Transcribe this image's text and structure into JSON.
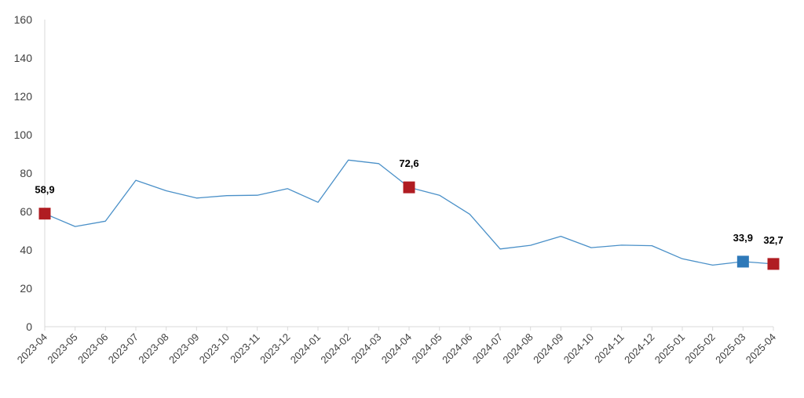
{
  "chart_data": {
    "type": "line",
    "title": "",
    "xlabel": "",
    "ylabel": "",
    "ylim": [
      0,
      160
    ],
    "yticks": [
      "0",
      "20",
      "40",
      "60",
      "80",
      "100",
      "120",
      "140",
      "160"
    ],
    "grid": false,
    "legend": "none",
    "categories": [
      "2023-04",
      "2023-05",
      "2023-06",
      "2023-07",
      "2023-08",
      "2023-09",
      "2023-10",
      "2023-11",
      "2023-12",
      "2024-01",
      "2024-02",
      "2024-03",
      "2024-04",
      "2024-05",
      "2024-06",
      "2024-07",
      "2024-08",
      "2024-09",
      "2024-10",
      "2024-11",
      "2024-12",
      "2025-01",
      "2025-02",
      "2025-03",
      "2025-04"
    ],
    "series": [
      {
        "values": [
          58.9,
          52.2,
          55.0,
          76.3,
          70.8,
          67.0,
          68.3,
          68.5,
          71.9,
          64.8,
          86.8,
          85.0,
          72.6,
          68.5,
          58.6,
          40.5,
          42.4,
          47.1,
          41.2,
          42.5,
          42.2,
          35.4,
          32.1,
          33.9,
          32.7
        ],
        "color": "#4a90c8"
      }
    ],
    "markers": [
      {
        "index": 0,
        "label": "58,9",
        "color": "#b01c22"
      },
      {
        "index": 12,
        "label": "72,6",
        "color": "#b01c22"
      },
      {
        "index": 23,
        "label": "33,9",
        "color": "#2e79b9"
      },
      {
        "index": 24,
        "label": "32,7",
        "color": "#b01c22"
      }
    ],
    "axis_color": "#d9d9d9"
  }
}
